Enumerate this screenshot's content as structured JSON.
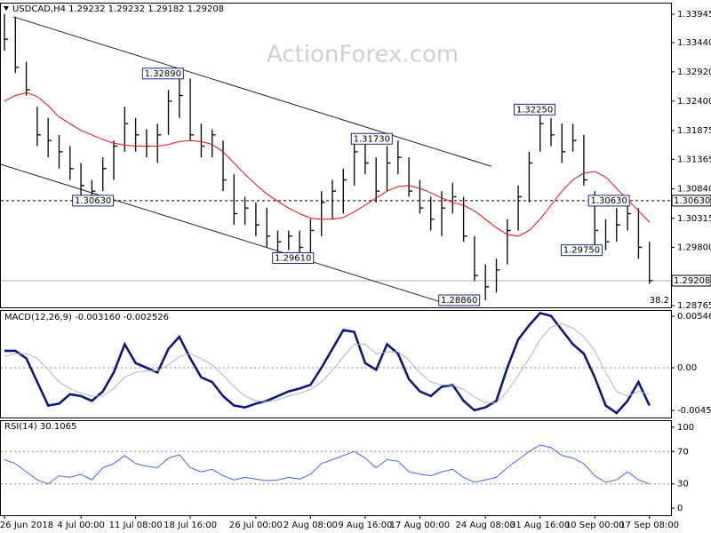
{
  "chart_data": [
    {
      "type": "ohlc",
      "title": "USDCAD,H4  1.29232 1.29232 1.29182 1.29208",
      "watermark": "ActionForex.com",
      "categories": [
        "26 Jun 2018",
        null,
        null,
        null,
        null,
        null,
        null,
        "4 Jul 00:00",
        null,
        null,
        null,
        null,
        "11 Jul 08:00",
        null,
        null,
        null,
        null,
        "18 Jul 16:00",
        null,
        null,
        null,
        null,
        null,
        "26 Jul 00:00",
        null,
        null,
        null,
        null,
        "2 Aug 08:00",
        null,
        null,
        null,
        null,
        "9 Aug 16:00",
        null,
        null,
        null,
        null,
        "17 Aug 00:00",
        null,
        null,
        null,
        null,
        null,
        "24 Aug 08:00",
        null,
        null,
        null,
        null,
        "31 Aug 16:00",
        null,
        null,
        null,
        null,
        "10 Sep 00:00",
        null,
        null,
        null,
        null,
        "17 Sep 08:00"
      ],
      "high": [
        1.3395,
        1.339,
        1.331,
        1.323,
        1.321,
        1.318,
        1.316,
        1.313,
        1.31,
        1.314,
        1.317,
        1.323,
        1.321,
        1.319,
        1.32,
        1.326,
        1.3289,
        1.328,
        1.32,
        1.319,
        1.317,
        1.311,
        1.307,
        1.306,
        1.305,
        1.301,
        1.301,
        1.301,
        1.303,
        1.308,
        1.31,
        1.312,
        1.3173,
        1.317,
        1.314,
        1.316,
        1.317,
        1.314,
        1.31,
        1.307,
        1.308,
        1.3095,
        1.307,
        1.3,
        1.295,
        1.296,
        1.303,
        1.309,
        1.315,
        1.3225,
        1.321,
        1.32,
        1.32,
        1.318,
        1.308,
        1.303,
        1.305,
        1.3063,
        1.305,
        1.299
      ],
      "low": [
        1.333,
        1.329,
        1.325,
        1.316,
        1.314,
        1.312,
        1.31,
        1.307,
        1.3063,
        1.308,
        1.31,
        1.315,
        1.315,
        1.314,
        1.313,
        1.318,
        1.321,
        1.317,
        1.314,
        1.314,
        1.308,
        1.302,
        1.302,
        1.3,
        1.298,
        1.297,
        1.2975,
        1.2961,
        1.297,
        1.3,
        1.303,
        1.304,
        1.309,
        1.311,
        1.306,
        1.308,
        1.311,
        1.307,
        1.304,
        1.301,
        1.3,
        1.304,
        1.299,
        1.292,
        1.2886,
        1.29,
        1.295,
        1.301,
        1.306,
        1.315,
        1.316,
        1.313,
        1.315,
        1.309,
        1.298,
        1.2975,
        1.299,
        1.301,
        1.296,
        1.2915
      ],
      "close": [
        1.335,
        1.33,
        1.326,
        1.318,
        1.317,
        1.315,
        1.312,
        1.309,
        1.308,
        1.312,
        1.316,
        1.32,
        1.318,
        1.316,
        1.318,
        1.324,
        1.325,
        1.318,
        1.316,
        1.318,
        1.31,
        1.304,
        1.305,
        1.302,
        1.3,
        1.299,
        1.3,
        1.298,
        1.301,
        1.306,
        1.308,
        1.31,
        1.315,
        1.313,
        1.308,
        1.313,
        1.314,
        1.308,
        1.305,
        1.303,
        1.305,
        1.307,
        1.3,
        1.293,
        1.291,
        1.294,
        1.301,
        1.307,
        1.313,
        1.32,
        1.318,
        1.315,
        1.317,
        1.31,
        1.301,
        1.299,
        1.302,
        1.304,
        1.298,
        1.2921
      ],
      "color": "#111111",
      "ma": {
        "color": "#e01010",
        "values": [
          1.324,
          1.325,
          1.3255,
          1.3248,
          1.3232,
          1.3212,
          1.32,
          1.3188,
          1.318,
          1.3172,
          1.3165,
          1.3162,
          1.316,
          1.316,
          1.316,
          1.3163,
          1.3168,
          1.317,
          1.3168,
          1.3163,
          1.315,
          1.313,
          1.311,
          1.3092,
          1.3075,
          1.3062,
          1.305,
          1.304,
          1.3032,
          1.303,
          1.303,
          1.3033,
          1.3043,
          1.3055,
          1.3068,
          1.308,
          1.3088,
          1.309,
          1.3085,
          1.3077,
          1.3068,
          1.306,
          1.3055,
          1.3045,
          1.303,
          1.3015,
          1.3003,
          1.3,
          1.301,
          1.303,
          1.3055,
          1.308,
          1.31,
          1.3112,
          1.3115,
          1.3105,
          1.3085,
          1.3065,
          1.3045,
          1.3025
        ]
      },
      "ylim": [
        1.28734,
        1.34134
      ],
      "yticks": [
        {
          "value": 1.33945,
          "label": "1.33945"
        },
        {
          "value": 1.3344,
          "label": "1.33440"
        },
        {
          "value": 1.3292,
          "label": "1.32920"
        },
        {
          "value": 1.324,
          "label": "1.32400"
        },
        {
          "value": 1.31875,
          "label": "1.31875"
        },
        {
          "value": 1.31365,
          "label": "1.31365"
        },
        {
          "value": 1.3084,
          "label": "1.30840"
        },
        {
          "value": 1.30315,
          "label": "1.30315"
        },
        {
          "value": 1.298,
          "label": "1.29800"
        },
        {
          "value": 1.28765,
          "label": "1.28765"
        }
      ],
      "level": {
        "value": 1.3063,
        "label": "1.30630"
      },
      "current": 1.29208,
      "fib_note": "38.2",
      "trendlines": [
        {
          "x": [
            0.81,
            44.55
          ],
          "y": [
            1.339,
            1.3124
          ]
        },
        {
          "x": [
            -0.41,
            40.24
          ],
          "y": [
            1.3128,
            1.2881
          ]
        }
      ],
      "annotations": [
        {
          "x": 14.5,
          "value": 1.3289,
          "label": "1.32890"
        },
        {
          "x": 8.1,
          "value": 1.3063,
          "label": "1.30630"
        },
        {
          "x": 26.4,
          "value": 1.2961,
          "label": "1.29610"
        },
        {
          "x": 33.6,
          "value": 1.3173,
          "label": "1.31730"
        },
        {
          "x": 41.6,
          "value": 1.2886,
          "label": "1.28860"
        },
        {
          "x": 48.5,
          "value": 1.3225,
          "label": "1.32250"
        },
        {
          "x": 55.3,
          "value": 1.3063,
          "label": "1.30630"
        },
        {
          "x": 52.8,
          "value": 1.2975,
          "label": "1.29750"
        }
      ]
    },
    {
      "type": "macd",
      "title": "MACD(12,26,9) -0.003160 -0.002526",
      "series": [
        {
          "color": "#0b1a78",
          "values": [
            0.0018,
            0.0018,
            0.001,
            -0.0015,
            -0.004,
            -0.0038,
            -0.0028,
            -0.003,
            -0.0035,
            -0.0025,
            -0.0005,
            0.0025,
            0.0005,
            0.0,
            -0.0005,
            0.002,
            0.0033,
            0.001,
            -0.001,
            -0.0015,
            -0.003,
            -0.004,
            -0.0042,
            -0.0038,
            -0.0035,
            -0.003,
            -0.0025,
            -0.0022,
            -0.0018,
            0.0,
            0.002,
            0.004,
            0.0038,
            0.0005,
            -0.0002,
            0.0025,
            0.0015,
            -0.0012,
            -0.0025,
            -0.003,
            -0.002,
            -0.0018,
            -0.0035,
            -0.0045,
            -0.0042,
            -0.0035,
            0.0,
            0.003,
            0.0045,
            0.0058,
            0.0055,
            0.004,
            0.0025,
            0.0015,
            -0.001,
            -0.004,
            -0.0048,
            -0.0035,
            -0.0015,
            -0.004
          ]
        },
        {
          "color": "#b4b4b4",
          "values": [
            0.0012,
            0.0015,
            0.0015,
            0.001,
            -0.0002,
            -0.0015,
            -0.0022,
            -0.0027,
            -0.003,
            -0.003,
            -0.0022,
            -0.001,
            -0.0005,
            -0.0003,
            -0.0003,
            0.0003,
            0.0012,
            0.0015,
            0.001,
            0.0003,
            -0.0008,
            -0.002,
            -0.003,
            -0.0035,
            -0.0036,
            -0.0034,
            -0.003,
            -0.0027,
            -0.0023,
            -0.0015,
            -0.0003,
            0.0012,
            0.0025,
            0.0025,
            0.0015,
            0.0017,
            0.0017,
            0.0008,
            -0.0005,
            -0.0015,
            -0.0018,
            -0.0018,
            -0.0023,
            -0.0031,
            -0.0037,
            -0.0037,
            -0.0025,
            -0.0008,
            0.001,
            0.003,
            0.0043,
            0.0047,
            0.0042,
            0.0033,
            0.0018,
            -0.0005,
            -0.0025,
            -0.003,
            -0.0025,
            -0.0028
          ]
        }
      ],
      "ylim": [
        -0.00527,
        0.00603
      ],
      "yticks": [
        0.005465,
        {
          "value": 0,
          "label": "0.00"
        },
        -0.004527
      ],
      "levels": [
        0
      ]
    },
    {
      "type": "line",
      "title": "RSI(14) 30.1065",
      "series": [
        {
          "color": "#3f66f0",
          "values": [
            60,
            55,
            45,
            35,
            30,
            40,
            38,
            42,
            35,
            50,
            55,
            65,
            55,
            52,
            50,
            62,
            66,
            50,
            45,
            48,
            40,
            35,
            38,
            36,
            34,
            35,
            38,
            36,
            42,
            55,
            60,
            65,
            70,
            62,
            50,
            60,
            58,
            45,
            42,
            40,
            45,
            48,
            38,
            32,
            35,
            38,
            50,
            60,
            70,
            78,
            75,
            65,
            62,
            55,
            40,
            32,
            35,
            45,
            35,
            30
          ]
        }
      ],
      "ylim": [
        -8.7,
        107.6
      ],
      "yticks": [
        100,
        70,
        30,
        0
      ],
      "levels": [
        70,
        30
      ]
    }
  ]
}
